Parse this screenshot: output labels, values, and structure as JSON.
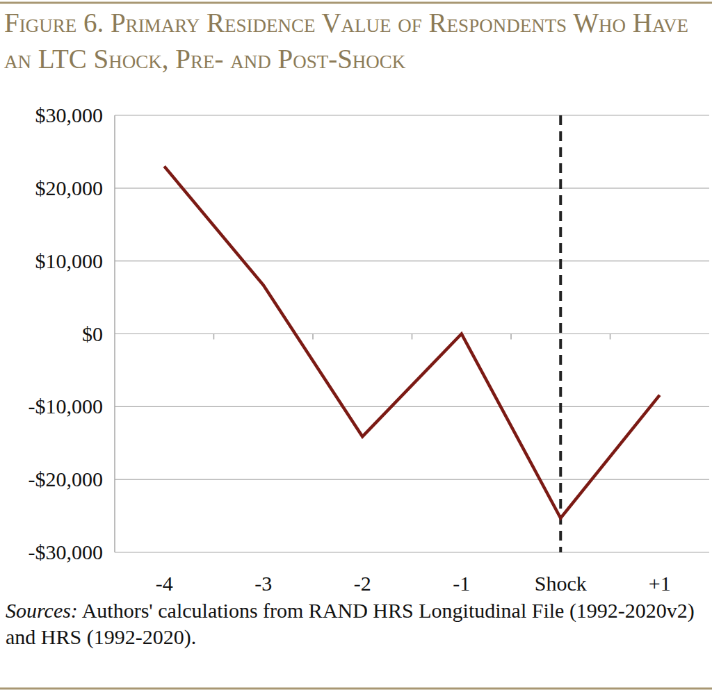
{
  "chart_data": {
    "type": "line",
    "title": "Figure 6. Primary Residence Value of Respondents Who Have an LTC Shock, Pre- and Post-Shock",
    "categories": [
      "-4",
      "-3",
      "-2",
      "-1",
      "Shock",
      "+1"
    ],
    "values": [
      23000,
      6700,
      -14100,
      0,
      -25300,
      -8400
    ],
    "color": "#7b1a14",
    "ylim": [
      -30000,
      30000
    ],
    "yticks": [
      {
        "value": -30000,
        "label": "-$30,000"
      },
      {
        "value": -20000,
        "label": "-$20,000"
      },
      {
        "value": -10000,
        "label": "-$10,000"
      },
      {
        "value": 0,
        "label": "$0"
      },
      {
        "value": 10000,
        "label": "$10,000"
      },
      {
        "value": 20000,
        "label": "$20,000"
      },
      {
        "value": 30000,
        "label": "$30,000"
      }
    ],
    "grid": true,
    "vline": "Shock",
    "note": "Sources: Authors' calculations from RAND HRS Longitudinal File (1992-2020v2) and HRS (1992-2020)."
  }
}
